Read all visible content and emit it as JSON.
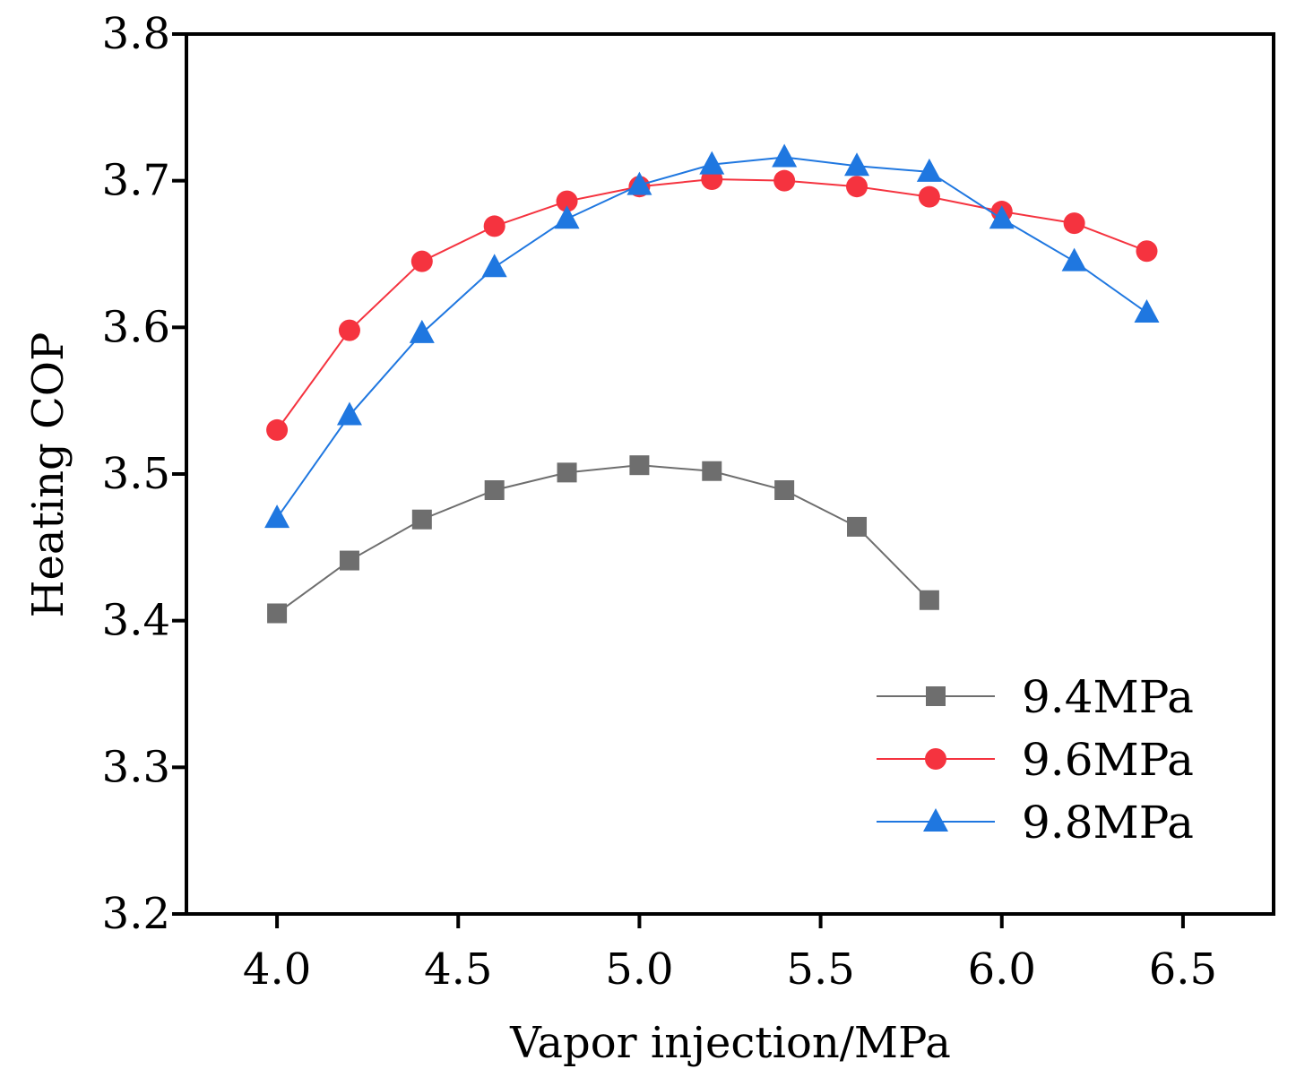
{
  "chart_data": {
    "type": "line",
    "title": "",
    "xlabel": "Vapor injection/MPa",
    "ylabel": "Heating COP",
    "xlim": [
      3.75,
      6.75
    ],
    "ylim": [
      3.2,
      3.8
    ],
    "xticks": [
      4.0,
      4.5,
      5.0,
      5.5,
      6.0,
      6.5
    ],
    "xtick_labels": [
      "4.0",
      "4.5",
      "5.0",
      "5.5",
      "6.0",
      "6.5"
    ],
    "yticks": [
      3.2,
      3.3,
      3.4,
      3.5,
      3.6,
      3.7,
      3.8
    ],
    "ytick_labels": [
      "3.2",
      "3.3",
      "3.4",
      "3.5",
      "3.6",
      "3.7",
      "3.8"
    ],
    "grid": false,
    "legend_position": "bottom-right",
    "series": [
      {
        "name": "9.4MPa",
        "color": "#6e6e6e",
        "marker": "square",
        "x": [
          4.0,
          4.2,
          4.4,
          4.6,
          4.8,
          5.0,
          5.2,
          5.4,
          5.6,
          5.8
        ],
        "values": [
          3.405,
          3.441,
          3.469,
          3.489,
          3.501,
          3.506,
          3.502,
          3.489,
          3.464,
          3.414
        ]
      },
      {
        "name": "9.6MPa",
        "color": "#f5333f",
        "marker": "circle",
        "x": [
          4.0,
          4.2,
          4.4,
          4.6,
          4.8,
          5.0,
          5.2,
          5.4,
          5.6,
          5.8,
          6.0,
          6.2,
          6.4
        ],
        "values": [
          3.53,
          3.598,
          3.645,
          3.669,
          3.686,
          3.696,
          3.701,
          3.7,
          3.696,
          3.689,
          3.679,
          3.671,
          3.652
        ]
      },
      {
        "name": "9.8MPa",
        "color": "#1f77e0",
        "marker": "triangle",
        "x": [
          4.0,
          4.2,
          4.4,
          4.6,
          4.8,
          5.0,
          5.2,
          5.4,
          5.6,
          5.8,
          6.0,
          6.2,
          6.4
        ],
        "values": [
          3.47,
          3.54,
          3.596,
          3.641,
          3.674,
          3.697,
          3.711,
          3.716,
          3.71,
          3.706,
          3.674,
          3.645,
          3.61
        ]
      }
    ]
  }
}
